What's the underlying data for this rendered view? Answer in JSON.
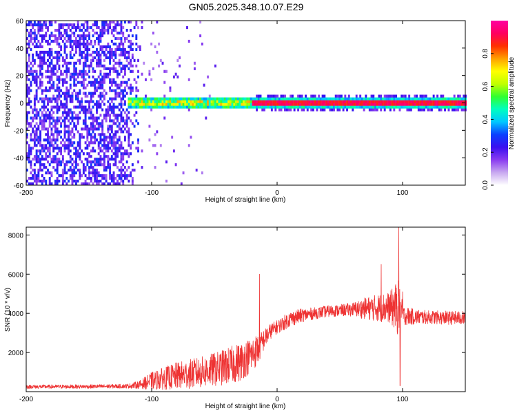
{
  "chart_data": [
    {
      "type": "heatmap",
      "title": "GN05.2025.348.10.07.E29",
      "xlabel": "Height of straight line (km)",
      "ylabel": "Frequency (Hz)",
      "xlim": [
        -200,
        150
      ],
      "ylim": [
        -60,
        60
      ],
      "xticks": [
        -200,
        -100,
        0,
        100
      ],
      "yticks": [
        60,
        40,
        20,
        0,
        -20,
        -40,
        -60
      ],
      "colorbar": {
        "label": "Normalized spectral amplitude",
        "range": [
          0.0,
          1.0
        ],
        "ticks": [
          "0.0",
          "0.2",
          "0.4",
          "0.6",
          "0.8"
        ],
        "colormap": [
          "#ffffff",
          "#c8a8f0",
          "#8a3cf0",
          "#3a10f0",
          "#0a40ff",
          "#00c8ff",
          "#00ffc0",
          "#30ff30",
          "#c0ff00",
          "#ffff00",
          "#ffa000",
          "#ff3000",
          "#ff0060",
          "#ff00a0"
        ]
      },
      "features": {
        "noise_region_x": [
          -200,
          -110
        ],
        "signal_line_frequency": 0,
        "broad_band_x": [
          -120,
          -20
        ],
        "narrow_band_x": [
          -20,
          150
        ]
      }
    },
    {
      "type": "line",
      "title": "",
      "xlabel": "Height of straight line (km)",
      "ylabel": "SNR (10 * v/v)",
      "xlim": [
        -200,
        150
      ],
      "ylim": [
        0,
        8400
      ],
      "xticks": [
        -200,
        -100,
        0,
        100
      ],
      "yticks": [
        2000,
        4000,
        6000,
        8000
      ],
      "color": "#ee3333",
      "envelope": {
        "x": [
          -200,
          -150,
          -120,
          -110,
          -100,
          -80,
          -60,
          -45,
          -30,
          -20,
          -15,
          -10,
          -5,
          0,
          10,
          20,
          30,
          40,
          50,
          60,
          70,
          80,
          90,
          95,
          98,
          100,
          105,
          110,
          120,
          130,
          140,
          150
        ],
        "y": [
          250,
          260,
          280,
          350,
          550,
          800,
          1000,
          1200,
          1500,
          1900,
          2200,
          2700,
          3100,
          3300,
          3700,
          3900,
          4000,
          4100,
          4150,
          4200,
          4250,
          4280,
          4300,
          4300,
          4200,
          3900,
          3850,
          3820,
          3800,
          3780,
          3760,
          3760
        ],
        "noise": [
          100,
          100,
          110,
          200,
          450,
          700,
          800,
          900,
          1000,
          900,
          800,
          500,
          400,
          350,
          400,
          350,
          300,
          300,
          300,
          350,
          550,
          700,
          800,
          1300,
          1600,
          500,
          450,
          400,
          350,
          350,
          350,
          350
        ]
      },
      "spikes": [
        {
          "x": -14,
          "y": 6000
        },
        {
          "x": 83,
          "y": 6500
        },
        {
          "x": 97,
          "y": 8400
        },
        {
          "x": 98,
          "y": 300
        },
        {
          "x": 100,
          "y": 5100
        }
      ]
    }
  ]
}
